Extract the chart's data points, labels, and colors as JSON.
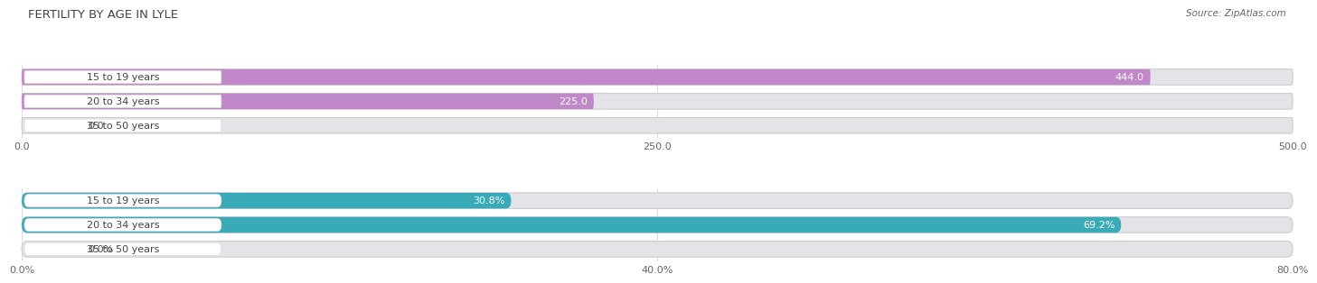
{
  "title": "FERTILITY BY AGE IN LYLE",
  "source": "Source: ZipAtlas.com",
  "top_bars": {
    "categories": [
      "15 to 19 years",
      "20 to 34 years",
      "35 to 50 years"
    ],
    "values": [
      444.0,
      225.0,
      0.0
    ],
    "color": "#c088c8",
    "xlim": [
      0,
      500
    ],
    "xticks": [
      0.0,
      250.0,
      500.0
    ],
    "xticklabels": [
      "0.0",
      "250.0",
      "500.0"
    ]
  },
  "bottom_bars": {
    "categories": [
      "15 to 19 years",
      "20 to 34 years",
      "35 to 50 years"
    ],
    "values": [
      30.8,
      69.2,
      0.0
    ],
    "color": "#38aab8",
    "xlim": [
      0,
      80
    ],
    "xticks": [
      0.0,
      40.0,
      80.0
    ],
    "xticklabels": [
      "0.0%",
      "40.0%",
      "80.0%"
    ]
  },
  "bar_height": 0.65,
  "bg_color": "#ffffff",
  "bar_bg_color": "#e4e4e8",
  "label_fontsize": 8,
  "value_fontsize": 8,
  "title_fontsize": 9.5,
  "source_fontsize": 7.5,
  "title_color": "#444444",
  "source_color": "#666666"
}
